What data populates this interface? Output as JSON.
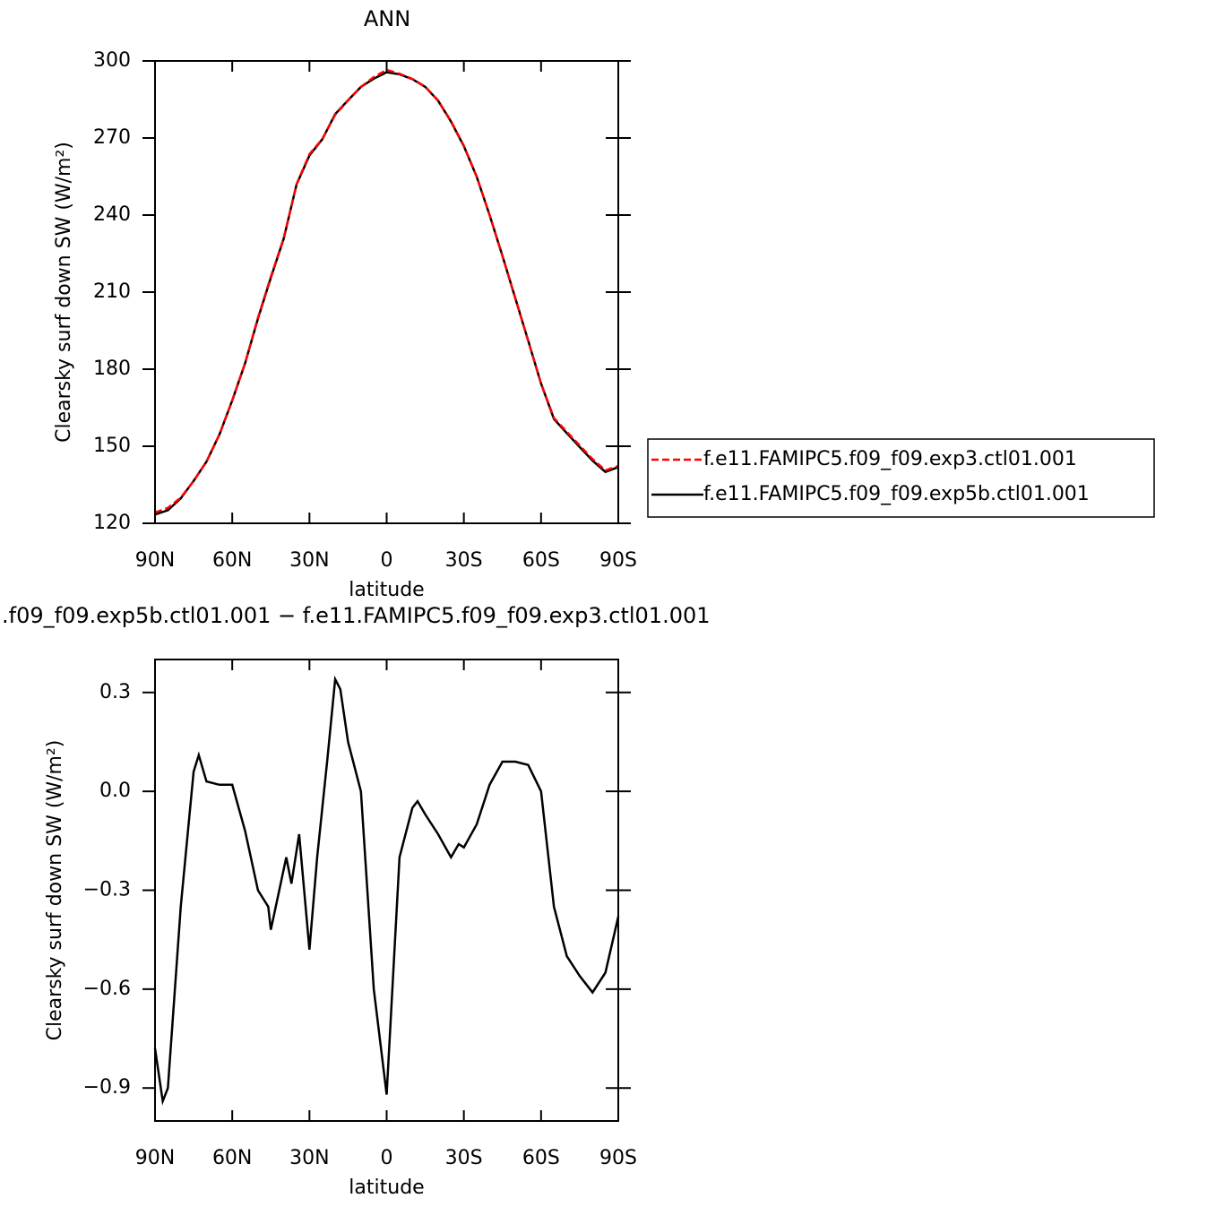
{
  "chart_data": [
    {
      "type": "line",
      "title": "ANN",
      "xlabel": "latitude",
      "ylabel": "Clearsky surf down SW (W/m²)",
      "x": [
        90,
        85,
        80,
        75,
        70,
        65,
        60,
        55,
        50,
        45,
        40,
        35,
        30,
        25,
        20,
        15,
        10,
        5,
        0,
        -5,
        -10,
        -15,
        -20,
        -25,
        -30,
        -35,
        -40,
        -45,
        -50,
        -55,
        -60,
        -65,
        -70,
        -75,
        -80,
        -85,
        -90
      ],
      "series": [
        {
          "name": "f.e11.FAMIPC5.f09_f09.exp3.ctl01.001",
          "color": "#ff0000",
          "dash": "dashed",
          "values": [
            124.2,
            126,
            130,
            136.4,
            144,
            154.5,
            167.8,
            182.4,
            200,
            216,
            231,
            252,
            263.7,
            269.6,
            279,
            284.6,
            289.9,
            293.7,
            296.5,
            295,
            293,
            290,
            284.6,
            276.6,
            267,
            255,
            240,
            224,
            207.5,
            191,
            174.4,
            161,
            155.6,
            150.3,
            145,
            140.6,
            142.3
          ]
        },
        {
          "name": "f.e11.FAMIPC5.f09_f09.exp5b.ctl01.001",
          "color": "#000000",
          "dash": "solid",
          "values": [
            123.4,
            125.1,
            129.7,
            136.5,
            144,
            154.5,
            167.8,
            182.3,
            199.7,
            215.6,
            230.8,
            251.9,
            263.2,
            269.5,
            279.3,
            284.7,
            289.9,
            293.1,
            295.6,
            294.8,
            292.9,
            289.9,
            284.5,
            276.4,
            266.8,
            254.9,
            240,
            224.1,
            207.6,
            191.1,
            174.4,
            160.6,
            155.1,
            149.7,
            144.4,
            140,
            141.9
          ]
        }
      ],
      "xlim": [
        90,
        -90
      ],
      "ylim": [
        120,
        300
      ],
      "xticks": [
        {
          "value": 90,
          "label": "90N"
        },
        {
          "value": 60,
          "label": "60N"
        },
        {
          "value": 30,
          "label": "30N"
        },
        0,
        {
          "value": -30,
          "label": "30S"
        },
        {
          "value": -60,
          "label": "60S"
        },
        {
          "value": -90,
          "label": "90S"
        }
      ],
      "yticks": [
        120,
        150,
        180,
        210,
        240,
        270,
        300
      ],
      "legend": "right"
    },
    {
      "type": "line",
      "title": ".f09_f09.exp5b.ctl01.001 − f.e11.FAMIPC5.f09_f09.exp3.ctl01.001",
      "xlabel": "latitude",
      "ylabel": "Clearsky surf down SW (W/m²)",
      "x": [
        90,
        87,
        85,
        80,
        75,
        73,
        70,
        65,
        60,
        55,
        50,
        46,
        45,
        42,
        39,
        37,
        34,
        30,
        27,
        23,
        20,
        18,
        15,
        10,
        5,
        0,
        -5,
        -10,
        -12,
        -15,
        -20,
        -25,
        -28,
        -30,
        -35,
        -40,
        -45,
        -50,
        -55,
        -60,
        -65,
        -70,
        -75,
        -80,
        -85,
        -90
      ],
      "series": [
        {
          "color": "#000000",
          "dash": "solid",
          "values": [
            -0.78,
            -0.94,
            -0.9,
            -0.35,
            0.06,
            0.11,
            0.03,
            0.02,
            0.02,
            -0.12,
            -0.3,
            -0.35,
            -0.42,
            -0.31,
            -0.2,
            -0.28,
            -0.13,
            -0.48,
            -0.2,
            0.1,
            0.34,
            0.31,
            0.15,
            0.0,
            -0.6,
            -0.92,
            -0.2,
            -0.05,
            -0.03,
            -0.07,
            -0.13,
            -0.2,
            -0.16,
            -0.17,
            -0.1,
            0.02,
            0.09,
            0.09,
            0.08,
            0.0,
            -0.35,
            -0.5,
            -0.56,
            -0.61,
            -0.55,
            -0.38
          ]
        }
      ],
      "xlim": [
        90,
        -90
      ],
      "ylim": [
        -1,
        0.4
      ],
      "xticks": [
        {
          "value": 90,
          "label": "90N"
        },
        {
          "value": 60,
          "label": "60N"
        },
        {
          "value": 30,
          "label": "30N"
        },
        0,
        {
          "value": -30,
          "label": "30S"
        },
        {
          "value": -60,
          "label": "60S"
        },
        {
          "value": -90,
          "label": "90S"
        }
      ],
      "yticks": [
        {
          "value": -0.9,
          "label": "−0.9"
        },
        {
          "value": -0.6,
          "label": "−0.6"
        },
        {
          "value": -0.3,
          "label": "−0.3"
        },
        {
          "value": 0,
          "label": "0.0"
        },
        {
          "value": 0.3,
          "label": "0.3"
        }
      ]
    }
  ]
}
